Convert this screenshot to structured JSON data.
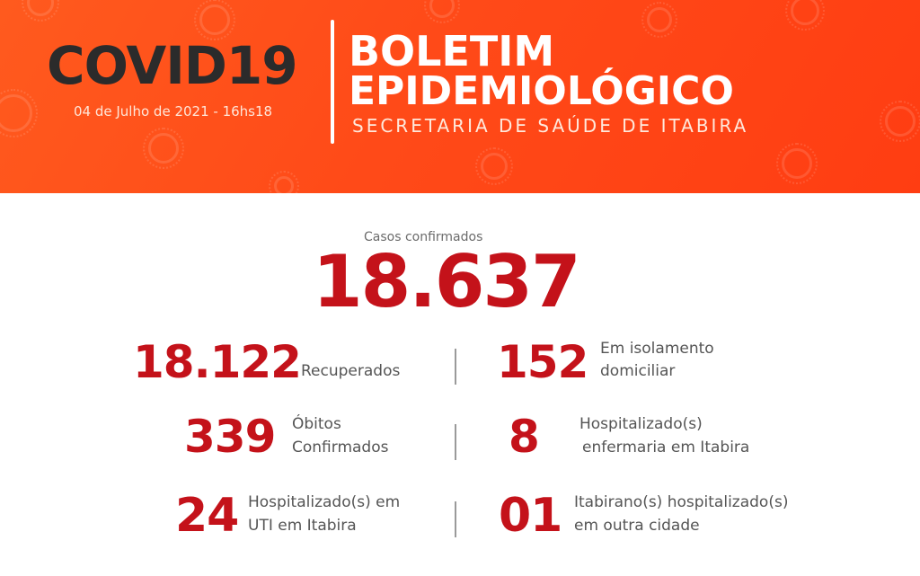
{
  "header": {
    "brand": "COVID19",
    "date": "04 de Julho de 2021 - 16hs18",
    "title_line1": "BOLETIM",
    "title_line2": "EPIDEMIOLÓGICO",
    "subtitle": "SECRETARIA DE SAÚDE DE ITABIRA",
    "colors": {
      "primary": "#ff4a18",
      "accent_red": "#c4121a",
      "dark": "#2b2b2b"
    }
  },
  "summary": {
    "confirmed_label": "Casos confirmados",
    "confirmed_value": "18.637"
  },
  "stats": {
    "recovered": {
      "value": "18.122",
      "label": "Recuperados"
    },
    "isolation": {
      "value": "152",
      "label_line1": "Em isolamento",
      "label_line2": "domiciliar"
    },
    "deaths": {
      "value": "339",
      "label_line1": "Óbitos",
      "label_line2": "Confirmados"
    },
    "ward": {
      "value": "8",
      "label_line1": "Hospitalizado(s)",
      "label_line2": "enfermaria em Itabira"
    },
    "icu": {
      "value": "24",
      "label_line1": "Hospitalizado(s) em",
      "label_line2": "UTI em Itabira"
    },
    "other_city": {
      "value": "01",
      "label_line1": "Itabirano(s) hospitalizado(s)",
      "label_line2": "em outra cidade"
    }
  },
  "icons": [
    "virus-icon"
  ]
}
